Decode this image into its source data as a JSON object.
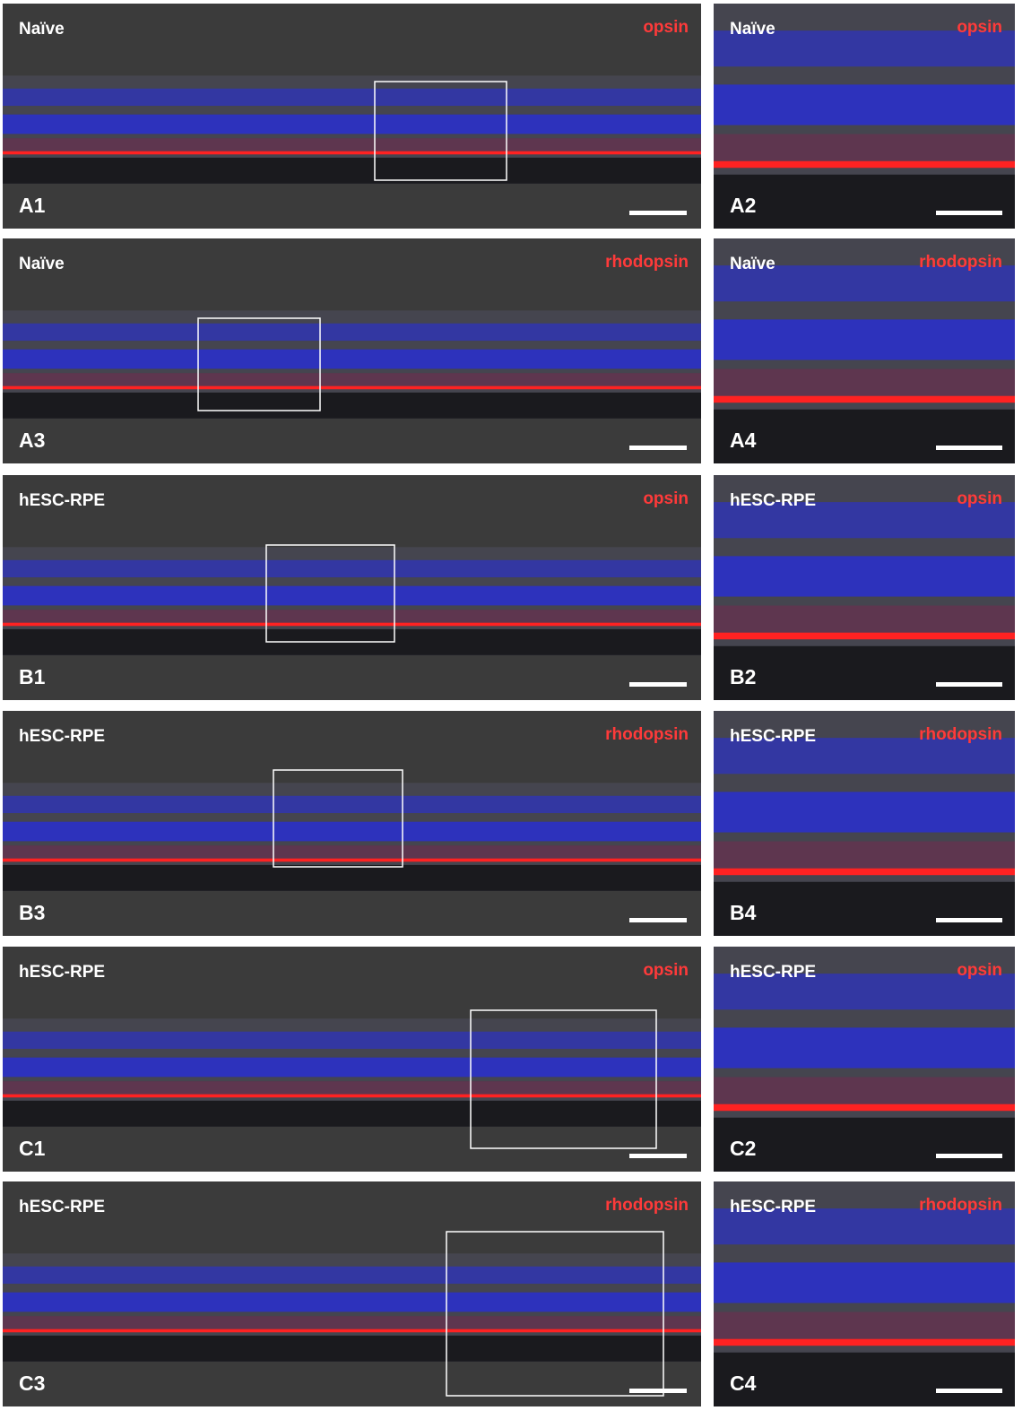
{
  "panels": [
    {
      "condition": "Naïve",
      "stain": "opsin",
      "label": "A1"
    },
    {
      "condition": "Naïve",
      "stain": "opsin",
      "label": "A2"
    },
    {
      "condition": "Naïve",
      "stain": "rhodopsin",
      "label": "A3"
    },
    {
      "condition": "Naïve",
      "stain": "rhodopsin",
      "label": "A4"
    },
    {
      "condition": "hESC-RPE",
      "stain": "opsin",
      "label": "B1"
    },
    {
      "condition": "hESC-RPE",
      "stain": "opsin",
      "label": "B2"
    },
    {
      "condition": "hESC-RPE",
      "stain": "rhodopsin",
      "label": "B3"
    },
    {
      "condition": "hESC-RPE",
      "stain": "rhodopsin",
      "label": "B4"
    },
    {
      "condition": "hESC-RPE",
      "stain": "opsin",
      "label": "C1"
    },
    {
      "condition": "hESC-RPE",
      "stain": "opsin",
      "label": "C2"
    },
    {
      "condition": "hESC-RPE",
      "stain": "rhodopsin",
      "label": "C3"
    },
    {
      "condition": "hESC-RPE",
      "stain": "rhodopsin",
      "label": "C4"
    }
  ]
}
